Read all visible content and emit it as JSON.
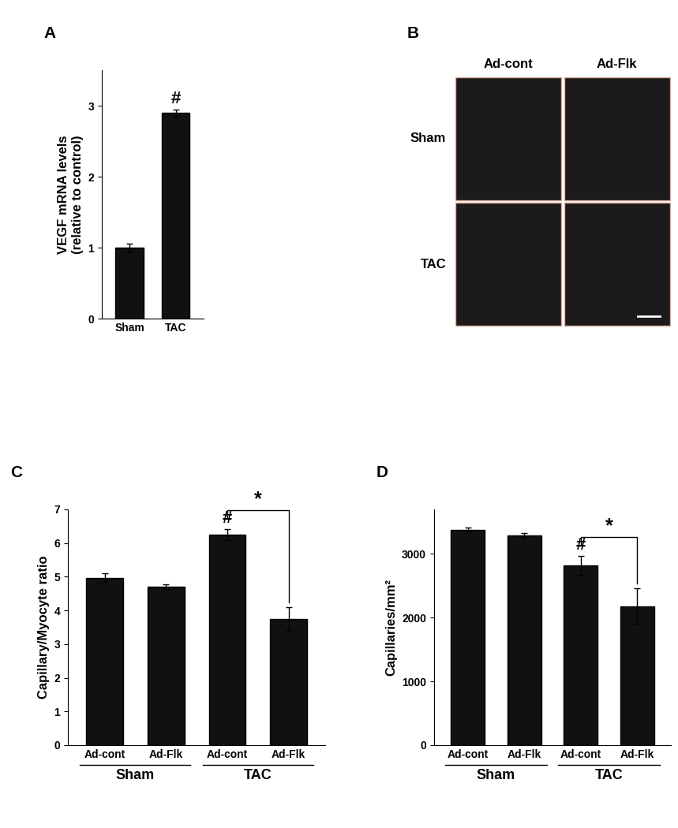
{
  "chart_data": [
    {
      "type": "bar",
      "title": "A",
      "categories": [
        "Sham",
        "TAC"
      ],
      "values": [
        1.0,
        2.9
      ],
      "errors": [
        0.06,
        0.05
      ],
      "color": "#111111",
      "ylabel": "VEGF mRNA levels\n(relative to control)",
      "ylim": [
        0,
        3.5
      ],
      "yticks": [
        0,
        1,
        2,
        3
      ],
      "annotations": [
        {
          "text": "#",
          "index": 1
        }
      ]
    },
    {
      "type": "image_grid",
      "title": "B",
      "columns": [
        "Ad-cont",
        "Ad-Flk"
      ],
      "rows": [
        "Sham",
        "TAC"
      ]
    },
    {
      "type": "bar",
      "title": "C",
      "categories": [
        "Ad-cont",
        "Ad-Flk",
        "Ad-cont",
        "Ad-Flk"
      ],
      "values": [
        4.97,
        4.7,
        6.25,
        3.75
      ],
      "errors": [
        0.12,
        0.08,
        0.17,
        0.35
      ],
      "color": "#111111",
      "ylabel": "Capillary/Myocyte ratio",
      "ylim": [
        0,
        7
      ],
      "yticks": [
        0,
        1,
        2,
        3,
        4,
        5,
        6,
        7
      ],
      "groups": [
        {
          "label": "Sham",
          "indices": [
            0,
            1
          ]
        },
        {
          "label": "TAC",
          "indices": [
            2,
            3
          ]
        }
      ],
      "annotations": [
        {
          "text": "#",
          "index": 2
        }
      ],
      "comparisons": [
        {
          "text": "*",
          "from": 2,
          "to": 3
        }
      ]
    },
    {
      "type": "bar",
      "title": "D",
      "categories": [
        "Ad-cont",
        "Ad-Flk",
        "Ad-cont",
        "Ad-Flk"
      ],
      "values": [
        3380,
        3290,
        2820,
        2180
      ],
      "errors": [
        30,
        30,
        150,
        280
      ],
      "color": "#111111",
      "ylabel": "Capillaries/mm²",
      "ylim": [
        0,
        3700
      ],
      "yticks": [
        0,
        1000,
        2000,
        3000
      ],
      "groups": [
        {
          "label": "Sham",
          "indices": [
            0,
            1
          ]
        },
        {
          "label": "TAC",
          "indices": [
            2,
            3
          ]
        }
      ],
      "annotations": [
        {
          "text": "#",
          "index": 2
        }
      ],
      "comparisons": [
        {
          "text": "*",
          "from": 2,
          "to": 3
        }
      ]
    }
  ]
}
